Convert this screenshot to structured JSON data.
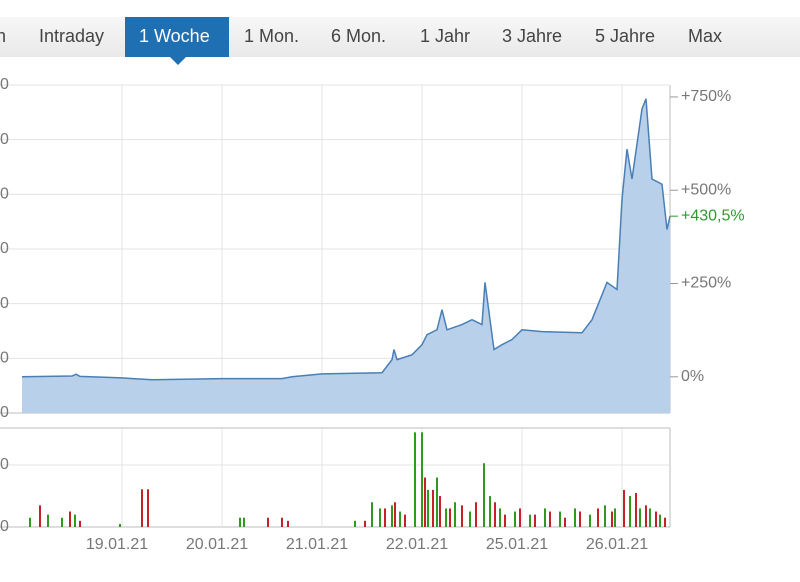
{
  "tabs": {
    "items": [
      "h",
      "Intraday",
      "1 Woche",
      "1 Mon.",
      "6 Mon.",
      "1 Jahr",
      "3 Jahre",
      "5 Jahre",
      "Max"
    ],
    "active": 2
  },
  "left_axis_labels": {
    "price": [
      "0",
      "0",
      "0",
      "0",
      "0",
      "0",
      "0"
    ],
    "volume": [
      "0",
      "0"
    ]
  },
  "chart_data": [
    {
      "type": "area",
      "x": [
        0,
        0.5,
        0.54,
        0.58,
        1.0,
        1.3,
        2.0,
        2.6,
        2.7,
        3.0,
        3.6,
        3.7,
        3.72,
        3.75,
        3.9,
        4.0,
        4.05,
        4.15,
        4.2,
        4.25,
        4.4,
        4.5,
        4.6,
        4.63,
        4.68,
        4.72,
        4.8,
        4.9,
        5.0,
        5.2,
        5.6,
        5.7,
        5.85,
        5.95,
        6.0,
        6.05,
        6.1,
        6.15,
        6.2,
        6.24,
        6.3,
        6.4,
        6.45,
        6.48
      ],
      "values": [
        0,
        2,
        7,
        1,
        -3,
        -8,
        -5,
        -5,
        0,
        8,
        11,
        46,
        73,
        46,
        59,
        86,
        113,
        126,
        180,
        126,
        140,
        153,
        140,
        253,
        153,
        73,
        86,
        100,
        126,
        121,
        118,
        153,
        253,
        234,
        476,
        610,
        530,
        624,
        718,
        745,
        530,
        516,
        395,
        430.5
      ],
      "value_labels": [
        null,
        null,
        null,
        null,
        null,
        null,
        null,
        null,
        null,
        null,
        null,
        null,
        null,
        null,
        null,
        null,
        null,
        null,
        null,
        null,
        null,
        null,
        null,
        null,
        null,
        null,
        null,
        null,
        null,
        null,
        null,
        null,
        null,
        null,
        null,
        null,
        null,
        null,
        null,
        null,
        null,
        null,
        null,
        "+430,5%"
      ],
      "color": "#4a7fb5",
      "fill": "#b8d0ea",
      "last_label_color": "#2e9a2e",
      "xlim": [
        0,
        6.48
      ],
      "ylim": [
        -97,
        782
      ],
      "xticks": [
        {
          "value": 1,
          "label": "19.01.21"
        },
        {
          "value": 2,
          "label": "20.01.21"
        },
        {
          "value": 3,
          "label": "21.01.21"
        },
        {
          "value": 4,
          "label": "22.01.21"
        },
        {
          "value": 5,
          "label": "25.01.21"
        },
        {
          "value": 6,
          "label": "26.01.21"
        }
      ],
      "y2ticks": [
        {
          "value": 0,
          "label": "0%"
        },
        {
          "value": 250,
          "label": "+250%"
        },
        {
          "value": 500,
          "label": "+500%"
        },
        {
          "value": 750,
          "label": "+750%"
        }
      ],
      "grid": true
    },
    {
      "type": "bar",
      "xlim": [
        0,
        6.48
      ],
      "ylim": [
        0,
        1.6
      ],
      "series": [
        {
          "color": "#2f9a1f",
          "x": [
            0.08,
            0.26,
            0.4,
            0.53,
            0.98,
            2.18,
            2.22,
            3.33,
            3.5,
            3.58,
            3.7,
            3.78,
            3.93,
            4.0,
            4.06,
            4.15,
            4.24,
            4.33,
            4.48,
            4.62,
            4.68,
            4.78,
            4.93,
            5.08,
            5.23,
            5.38,
            5.53,
            5.68,
            5.83,
            5.93,
            6.08,
            6.18,
            6.28,
            6.38
          ],
          "values": [
            0.15,
            0.2,
            0.15,
            0.2,
            0.05,
            0.15,
            0.15,
            0.1,
            0.4,
            0.3,
            0.35,
            0.25,
            1.53,
            1.53,
            0.6,
            0.8,
            0.3,
            0.4,
            0.25,
            1.03,
            0.5,
            0.3,
            0.25,
            0.2,
            0.3,
            0.25,
            0.3,
            0.2,
            0.35,
            0.3,
            0.5,
            0.3,
            0.3,
            0.2
          ]
        },
        {
          "color": "#c8202a",
          "x": [
            0.18,
            0.48,
            0.58,
            1.2,
            1.26,
            2.46,
            2.6,
            2.66,
            3.43,
            3.63,
            3.73,
            3.83,
            4.03,
            4.11,
            4.18,
            4.28,
            4.4,
            4.54,
            4.73,
            4.83,
            4.98,
            5.13,
            5.28,
            5.43,
            5.58,
            5.76,
            5.9,
            6.02,
            6.14,
            6.24,
            6.34,
            6.43
          ],
          "values": [
            0.35,
            0.25,
            0.1,
            0.61,
            0.61,
            0.15,
            0.15,
            0.1,
            0.1,
            0.3,
            0.4,
            0.2,
            0.8,
            0.6,
            0.5,
            0.3,
            0.35,
            0.4,
            0.4,
            0.2,
            0.3,
            0.2,
            0.25,
            0.15,
            0.25,
            0.3,
            0.25,
            0.6,
            0.55,
            0.35,
            0.25,
            0.15
          ]
        }
      ]
    }
  ]
}
